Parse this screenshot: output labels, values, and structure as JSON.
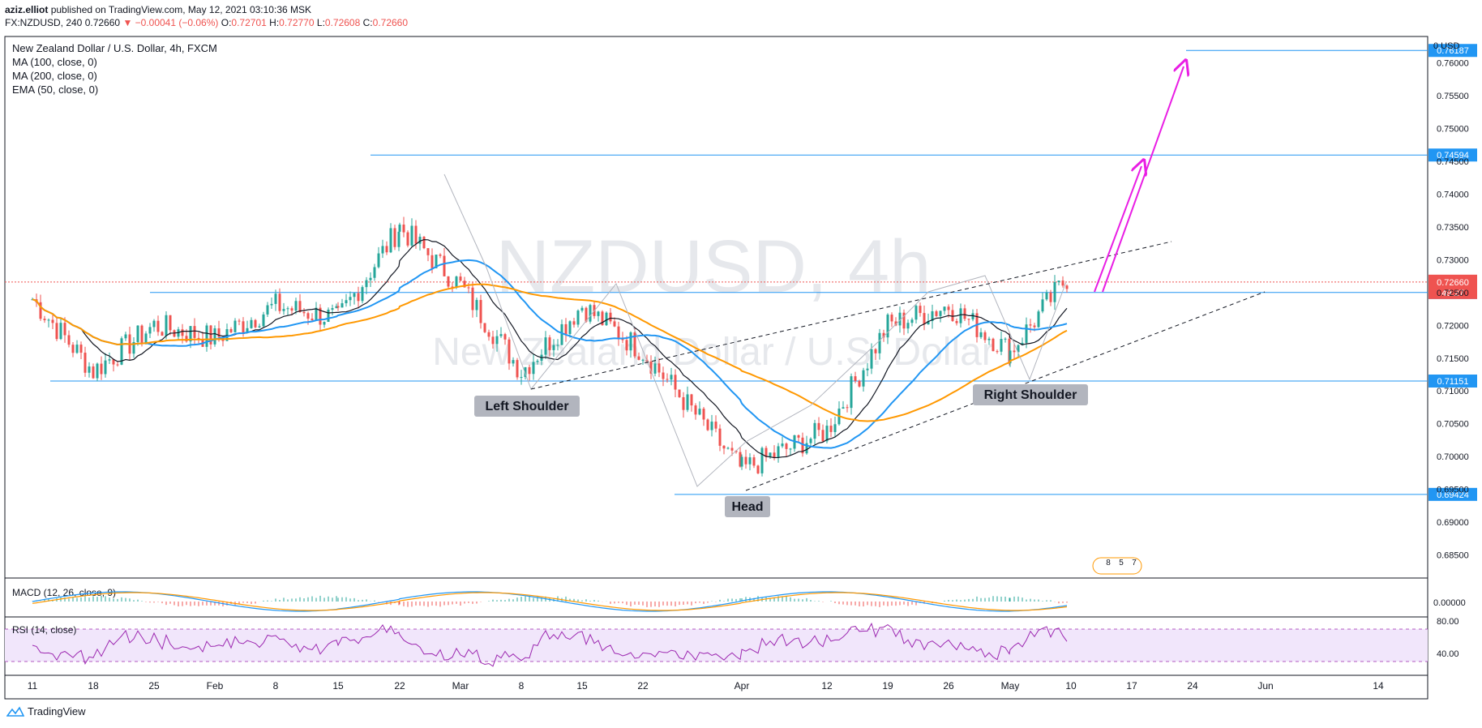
{
  "header": {
    "author": "aziz.elliot",
    "published": "published on TradingView.com, May 12, 2021 03:10:36 MSK",
    "symbol_line": "FX:NZDUSD, 240",
    "last": "0.72660",
    "change": "▼ −0.00041 (−0.06%)",
    "o_label": "O:",
    "o": "0.72701",
    "h_label": "H:",
    "h": "0.72770",
    "l_label": "L:",
    "l": "0.72608",
    "c_label": "C:",
    "c": "0.72660"
  },
  "legend": {
    "title": "New Zealand Dollar / U.S. Dollar, 4h, FXCM",
    "ma100": "MA (100, close, 0)",
    "ma200": "MA (200, close, 0)",
    "ema50": "EMA (50, close, 0)"
  },
  "watermark": {
    "symbol": "NZDUSD, 4h",
    "name": "New Zealand Dollar / U.S. Dollar"
  },
  "annotations": {
    "left_shoulder": "Left Shoulder",
    "head": "Head",
    "right_shoulder": "Right Shoulder"
  },
  "events_badge": {
    "a": "8",
    "b": "5",
    "c": "7"
  },
  "panes": {
    "macd_label": "MACD (12, 26, close, 9)",
    "macd_tick": "0.00000",
    "rsi_label": "RSI (14, close)",
    "rsi_ticks": [
      "80.00",
      "40.00"
    ]
  },
  "footer": {
    "brand": "TradingView"
  },
  "colors": {
    "up": "#26a69a",
    "down": "#ef5350",
    "ma100": "#2196f3",
    "ma200": "#ff9800",
    "ema50": "#131722",
    "level": "#2196f3",
    "arrow": "#e91ee4",
    "price_line": "#ef5350"
  },
  "chart_data": {
    "type": "line",
    "symbol": "NZDUSD",
    "timeframe": "4h",
    "y_axis_unit": "USD",
    "y_axis_ticks": [
      0.76,
      0.755,
      0.75,
      0.745,
      0.74,
      0.735,
      0.73,
      0.725,
      0.72,
      0.715,
      0.71,
      0.705,
      0.7,
      0.695,
      0.69,
      0.685
    ],
    "y_range": [
      0.6815,
      0.764
    ],
    "x_axis_labels": [
      "11",
      "18",
      "25",
      "Feb",
      "8",
      "15",
      "22",
      "Mar",
      "8",
      "15",
      "22",
      "Apr",
      "12",
      "19",
      "26",
      "May",
      "10",
      "17",
      "24",
      "Jun",
      "14"
    ],
    "price_levels": [
      {
        "value": 0.76187,
        "label": "0.76187"
      },
      {
        "value": 0.74594,
        "label": "0.74594"
      },
      {
        "value": 0.725,
        "label": "0.72500"
      },
      {
        "value": 0.71151,
        "label": "0.71151"
      },
      {
        "value": 0.69424,
        "label": "0.69424"
      }
    ],
    "current_price": {
      "value": 0.7266,
      "label": "0.72660",
      "countdown": "49:27"
    },
    "series": [
      {
        "name": "close",
        "x": [
          "11",
          "18",
          "25",
          "Feb",
          "8",
          "15",
          "22",
          "Mar",
          "8",
          "15",
          "22",
          "Apr",
          "12",
          "19",
          "26",
          "May",
          "10"
        ],
        "values": [
          0.724,
          0.713,
          0.72,
          0.718,
          0.723,
          0.721,
          0.735,
          0.726,
          0.713,
          0.723,
          0.716,
          0.698,
          0.704,
          0.72,
          0.723,
          0.716,
          0.728
        ]
      }
    ],
    "events": {
      "swing_high": 0.7459,
      "left_shoulder_low": 0.71,
      "head_low": 0.6942,
      "right_shoulder_low": 0.7115,
      "target": 0.7619
    }
  }
}
